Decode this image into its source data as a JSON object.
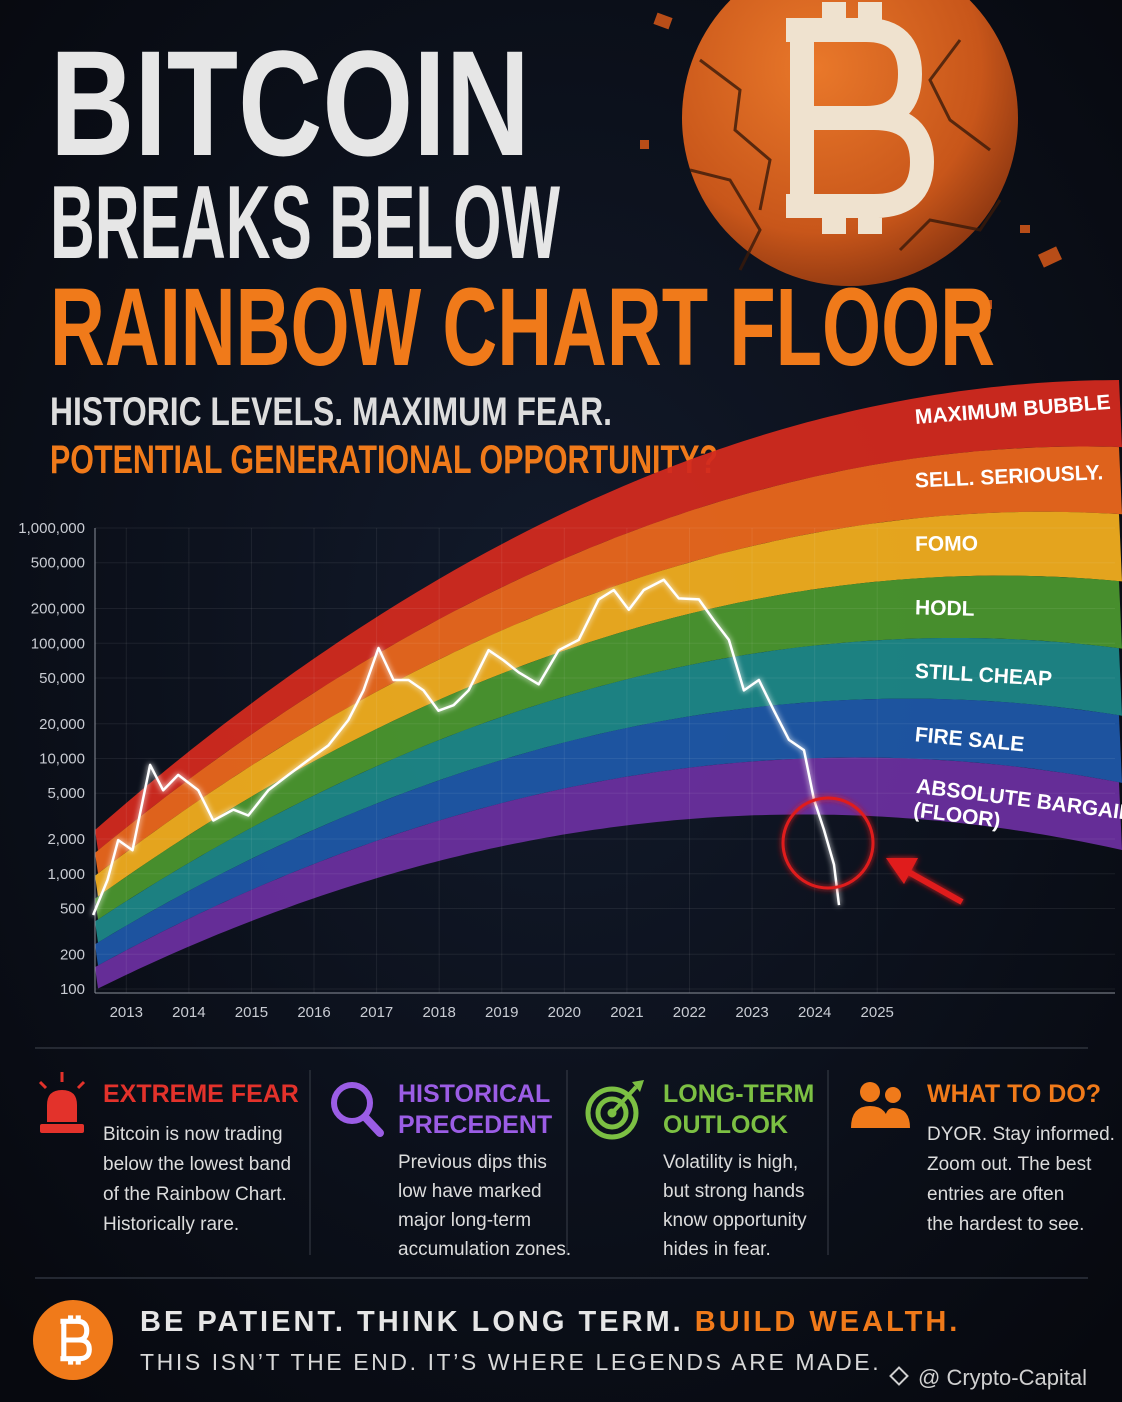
{
  "header": {
    "title_lines": [
      "BITCOIN",
      "BREAKS BELOW",
      "RAINBOW CHART FLOOR"
    ],
    "subtitle_lines": [
      "HISTORIC LEVELS. MAXIMUM FEAR.",
      "POTENTIAL GENERATIONAL OPPORTUNITY?"
    ]
  },
  "chart_data": {
    "type": "line",
    "log_scale": true,
    "grid": true,
    "color": "#ffffff",
    "x": [
      2012.47,
      2012.7,
      2012.87,
      2013.1,
      2013.38,
      2013.59,
      2013.83,
      2014.15,
      2014.39,
      2014.71,
      2014.95,
      2015.27,
      2015.59,
      2015.91,
      2016.23,
      2016.55,
      2016.79,
      2017.03,
      2017.27,
      2017.51,
      2017.75,
      2017.99,
      2018.23,
      2018.47,
      2018.79,
      2019.03,
      2019.27,
      2019.59,
      2019.91,
      2020.23,
      2020.55,
      2020.79,
      2021.03,
      2021.27,
      2021.59,
      2021.83,
      2022.15,
      2022.39,
      2022.63,
      2022.87,
      2023.11,
      2023.35,
      2023.59,
      2023.83,
      2023.99,
      2024.15,
      2024.31,
      2024.39
    ],
    "values": [
      439,
      883,
      1960,
      1600,
      8800,
      5300,
      7200,
      5300,
      2900,
      3600,
      3200,
      5300,
      7200,
      9700,
      13000,
      21600,
      39000,
      91000,
      48000,
      48000,
      39000,
      26000,
      29000,
      39000,
      87000,
      71000,
      56000,
      44000,
      87000,
      107000,
      240000,
      290000,
      195000,
      290000,
      355000,
      245000,
      240000,
      158000,
      107000,
      39000,
      48000,
      26000,
      14500,
      11800,
      4400,
      2400,
      1200,
      535
    ],
    "xlim": [
      2012.5,
      2028.8
    ],
    "xticks": [
      2013,
      2014,
      2015,
      2016,
      2017,
      2018,
      2019,
      2020,
      2021,
      2022,
      2023,
      2024,
      2025
    ],
    "ylim": [
      100,
      1000000
    ],
    "yticks": [
      100,
      200,
      500,
      {
        "value": 1000,
        "label": "1,000"
      },
      {
        "value": 2000,
        "label": "2,000"
      },
      {
        "value": 5000,
        "label": "5,000"
      },
      {
        "value": 10000,
        "label": "10,000"
      },
      {
        "value": 20000,
        "label": "20,000"
      },
      {
        "value": 50000,
        "label": "50,000"
      },
      {
        "value": 100000,
        "label": "100,000"
      },
      {
        "value": 200000,
        "label": "200,000"
      },
      {
        "value": 500000,
        "label": "500,000"
      },
      {
        "value": 1000000,
        "label": "1,000,000"
      }
    ],
    "bands": [
      {
        "label": [
          "MAXIMUM BUBBLE"
        ],
        "color": "#d22a1f"
      },
      {
        "label": [
          "SELL. SERIOUSLY."
        ],
        "color": "#ea671c"
      },
      {
        "label": [
          "FOMO"
        ],
        "color": "#f0ad1f"
      },
      {
        "label": [
          "HODL"
        ],
        "color": "#4b962e"
      },
      {
        "label": [
          "STILL CHEAP"
        ],
        "color": "#1d8787"
      },
      {
        "label": [
          "FIRE SALE"
        ],
        "color": "#1f57a6"
      },
      {
        "label": [
          "ABSOLUTE BARGAIN",
          "(FLOOR)"
        ],
        "color": "#6a2f9e"
      }
    ]
  },
  "cards": [
    {
      "title": [
        "EXTREME FEAR"
      ],
      "color": "#e3322b",
      "body": [
        "Bitcoin is now trading",
        "below the lowest band",
        "of the Rainbow Chart.",
        "Historically rare."
      ]
    },
    {
      "title": [
        "HISTORICAL",
        "PRECEDENT"
      ],
      "color": "#9b5de5",
      "body": [
        "Previous dips this",
        "low have marked",
        "major long-term",
        "accumulation zones."
      ]
    },
    {
      "title": [
        "LONG-TERM",
        "OUTLOOK"
      ],
      "color": "#7cc043",
      "body": [
        "Volatility is high,",
        "but strong hands",
        "know opportunity",
        "hides in fear."
      ]
    },
    {
      "title": [
        "WHAT TO DO?"
      ],
      "color": "#f07a1a",
      "body": [
        "DYOR. Stay informed.",
        "Zoom out. The best",
        "entries are often",
        "the hardest to see."
      ]
    }
  ],
  "footer": {
    "line1": "BE PATIENT. THINK LONG TERM.",
    "line1_highlight": "BUILD WEALTH.",
    "line2": "THIS ISN’T THE END. IT’S WHERE LEGENDS ARE MADE."
  },
  "watermark": "@ Crypto-Capital"
}
